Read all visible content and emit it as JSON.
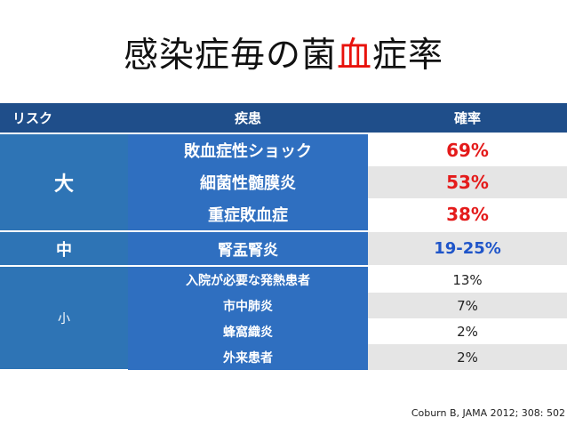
{
  "title": {
    "pre": "感染症毎の菌",
    "highlight": "血",
    "post": "症率"
  },
  "headers": {
    "risk": "リスク",
    "disease": "疾患",
    "rate": "確率"
  },
  "groups": [
    {
      "risk": "大",
      "rows": [
        {
          "disease": "敗血症性ショック",
          "rate": "69%"
        },
        {
          "disease": "細菌性髄膜炎",
          "rate": "53%"
        },
        {
          "disease": "重症敗血症",
          "rate": "38%"
        }
      ]
    },
    {
      "risk": "中",
      "rows": [
        {
          "disease": "腎盂腎炎",
          "rate": "19-25%"
        }
      ]
    },
    {
      "risk": "小",
      "rows": [
        {
          "disease": "入院が必要な発熱患者",
          "rate": "13%"
        },
        {
          "disease": "市中肺炎",
          "rate": "7%"
        },
        {
          "disease": "蜂窩織炎",
          "rate": "2%"
        },
        {
          "disease": "外来患者",
          "rate": "2%"
        }
      ]
    }
  ],
  "citation": "Coburn B, JAMA 2012; 308: 502",
  "colors": {
    "header": "#1f4e8a",
    "cell_blue": "#2f6fc0",
    "rate_red": "#e41b1b",
    "rate_blue": "#1f55c9",
    "title_highlight": "#e8120c"
  }
}
